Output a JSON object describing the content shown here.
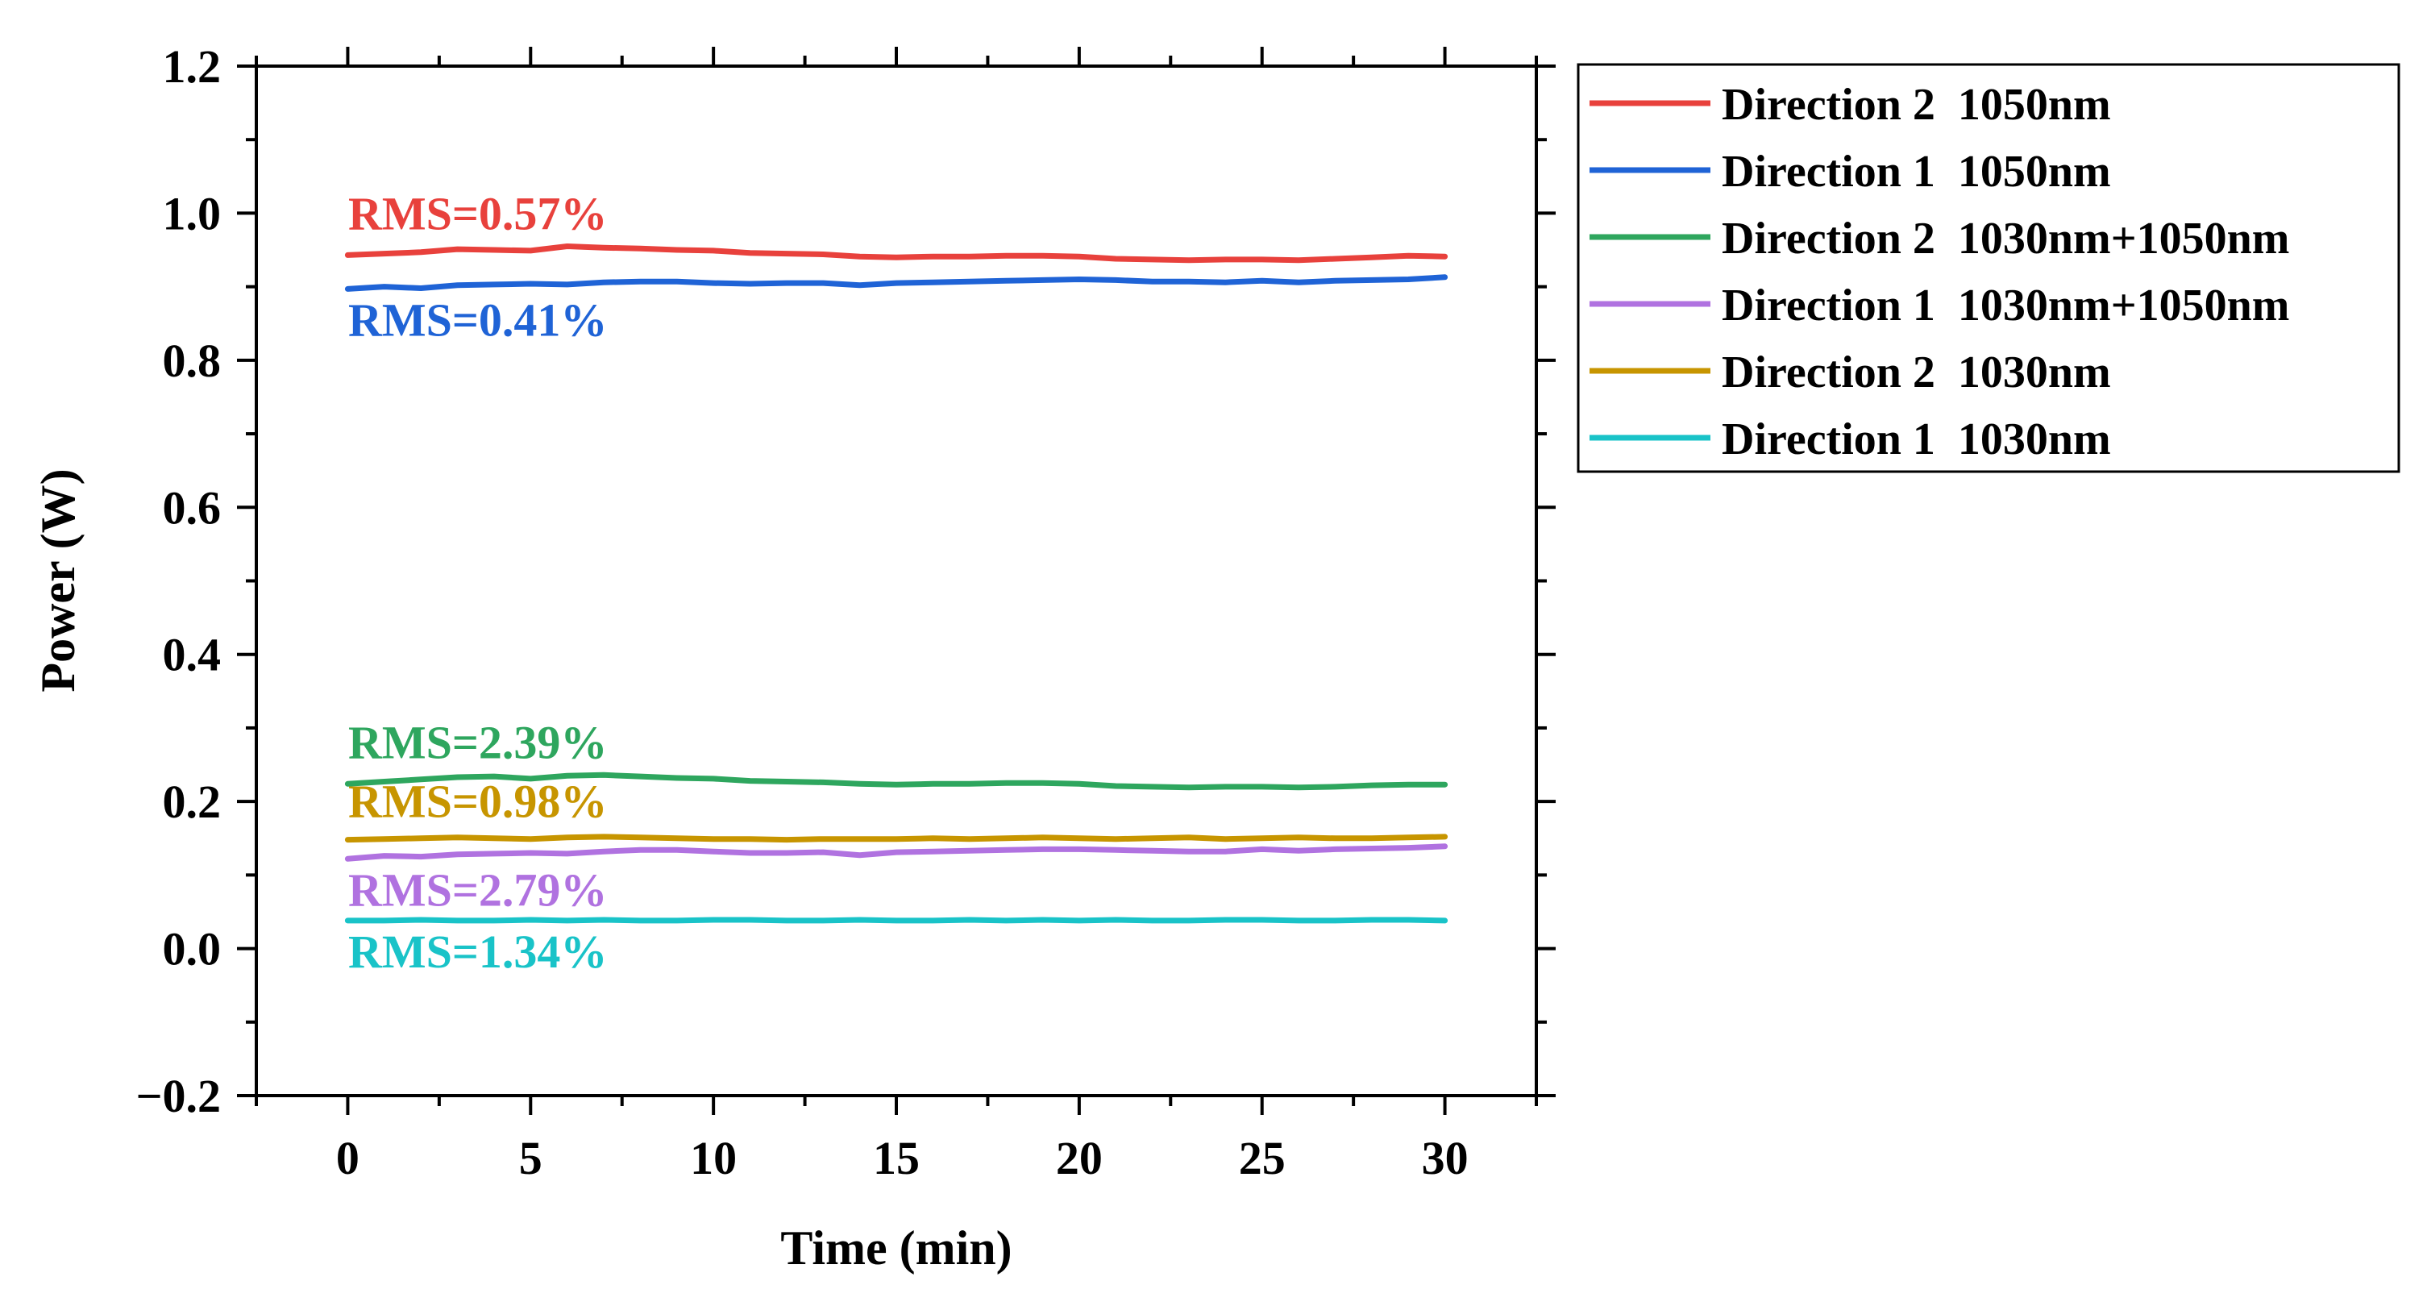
{
  "chart_data": {
    "type": "line",
    "title": "",
    "xlabel": "Time (min)",
    "ylabel": "Power (W)",
    "xlim": [
      -2.5,
      32.5
    ],
    "ylim": [
      -0.2,
      1.2
    ],
    "x_ticks": [
      0,
      5,
      10,
      15,
      20,
      25,
      30
    ],
    "x_tick_labels": [
      "0",
      "5",
      "10",
      "15",
      "20",
      "25",
      "30"
    ],
    "y_ticks": [
      -0.2,
      0.0,
      0.2,
      0.4,
      0.6,
      0.8,
      1.0,
      1.2
    ],
    "y_tick_labels": [
      "−0.2",
      "0.0",
      "0.2",
      "0.4",
      "0.6",
      "0.8",
      "1.0",
      "1.2"
    ],
    "grid": false,
    "legend_position": "outside-top-right",
    "x": [
      0,
      1,
      2,
      3,
      4,
      5,
      6,
      7,
      8,
      9,
      10,
      11,
      12,
      13,
      14,
      15,
      16,
      17,
      18,
      19,
      20,
      21,
      22,
      23,
      24,
      25,
      26,
      27,
      28,
      29,
      30
    ],
    "series": [
      {
        "name": "Direction 2  1050nm",
        "color": "#e8413c",
        "rms_label": "RMS=0.57%",
        "values": [
          0.943,
          0.945,
          0.947,
          0.951,
          0.95,
          0.949,
          0.955,
          0.953,
          0.952,
          0.95,
          0.949,
          0.946,
          0.945,
          0.944,
          0.941,
          0.94,
          0.941,
          0.941,
          0.942,
          0.942,
          0.941,
          0.938,
          0.937,
          0.936,
          0.937,
          0.937,
          0.936,
          0.938,
          0.94,
          0.942,
          0.941
        ]
      },
      {
        "name": "Direction 1  1050nm",
        "color": "#1f63d6",
        "rms_label": "RMS=0.41%",
        "values": [
          0.897,
          0.9,
          0.898,
          0.902,
          0.903,
          0.904,
          0.903,
          0.906,
          0.907,
          0.907,
          0.905,
          0.904,
          0.905,
          0.905,
          0.902,
          0.905,
          0.906,
          0.907,
          0.908,
          0.909,
          0.91,
          0.909,
          0.907,
          0.907,
          0.906,
          0.908,
          0.906,
          0.908,
          0.909,
          0.91,
          0.913
        ]
      },
      {
        "name": "Direction 2  1030nm+1050nm",
        "color": "#2ea65e",
        "rms_label": "RMS=2.39%",
        "values": [
          0.224,
          0.227,
          0.23,
          0.233,
          0.234,
          0.231,
          0.235,
          0.236,
          0.234,
          0.232,
          0.231,
          0.228,
          0.227,
          0.226,
          0.224,
          0.223,
          0.224,
          0.224,
          0.225,
          0.225,
          0.224,
          0.221,
          0.22,
          0.219,
          0.22,
          0.22,
          0.219,
          0.22,
          0.222,
          0.223,
          0.223
        ]
      },
      {
        "name": "Direction 1  1030nm+1050nm",
        "color": "#b072e0",
        "rms_label": "RMS=2.79%",
        "values": [
          0.122,
          0.126,
          0.125,
          0.128,
          0.129,
          0.13,
          0.129,
          0.132,
          0.134,
          0.134,
          0.132,
          0.13,
          0.13,
          0.131,
          0.127,
          0.131,
          0.132,
          0.133,
          0.134,
          0.135,
          0.135,
          0.134,
          0.133,
          0.132,
          0.132,
          0.135,
          0.133,
          0.135,
          0.136,
          0.137,
          0.139
        ]
      },
      {
        "name": "Direction 2  1030nm",
        "color": "#c79500",
        "rms_label": "RMS=0.98%",
        "values": [
          0.148,
          0.149,
          0.15,
          0.151,
          0.15,
          0.149,
          0.151,
          0.152,
          0.151,
          0.15,
          0.149,
          0.149,
          0.148,
          0.149,
          0.149,
          0.149,
          0.15,
          0.149,
          0.15,
          0.151,
          0.15,
          0.149,
          0.15,
          0.151,
          0.149,
          0.15,
          0.151,
          0.15,
          0.15,
          0.151,
          0.152
        ]
      },
      {
        "name": "Direction 1  1030nm",
        "color": "#19c3c8",
        "rms_label": "RMS=1.34%",
        "values": [
          0.038,
          0.038,
          0.039,
          0.038,
          0.038,
          0.039,
          0.038,
          0.039,
          0.038,
          0.038,
          0.039,
          0.039,
          0.038,
          0.038,
          0.039,
          0.038,
          0.038,
          0.039,
          0.038,
          0.039,
          0.038,
          0.039,
          0.038,
          0.038,
          0.039,
          0.039,
          0.038,
          0.038,
          0.039,
          0.039,
          0.038
        ]
      }
    ]
  }
}
